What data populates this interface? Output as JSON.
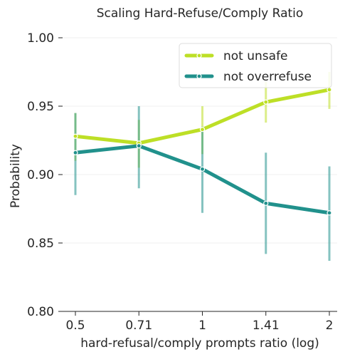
{
  "chart_data": {
    "type": "line",
    "title": "Scaling Hard-Refuse/Comply Ratio",
    "xlabel": "hard-refusal/comply prompts ratio (log)",
    "ylabel": "Probability",
    "categories": [
      "0.5",
      "0.71",
      "1",
      "1.41",
      "2"
    ],
    "x_scale": "log",
    "ylim": [
      0.8,
      1.0
    ],
    "y_ticks": [
      "0.80",
      "0.85",
      "0.90",
      "0.95",
      "1.00"
    ],
    "grid": true,
    "legend_position": "top-right",
    "series": [
      {
        "name": "not unsafe",
        "color": "#bddf26",
        "values": [
          0.928,
          0.923,
          0.933,
          0.953,
          0.962
        ],
        "ci_low": [
          0.91,
          0.905,
          0.915,
          0.938,
          0.948
        ],
        "ci_high": [
          0.945,
          0.94,
          0.95,
          0.968,
          0.975
        ]
      },
      {
        "name": "not overrefuse",
        "color": "#21918c",
        "values": [
          0.916,
          0.921,
          0.904,
          0.879,
          0.872
        ],
        "ci_low": [
          0.885,
          0.89,
          0.872,
          0.842,
          0.837
        ],
        "ci_high": [
          0.945,
          0.95,
          0.935,
          0.916,
          0.906
        ]
      }
    ]
  }
}
